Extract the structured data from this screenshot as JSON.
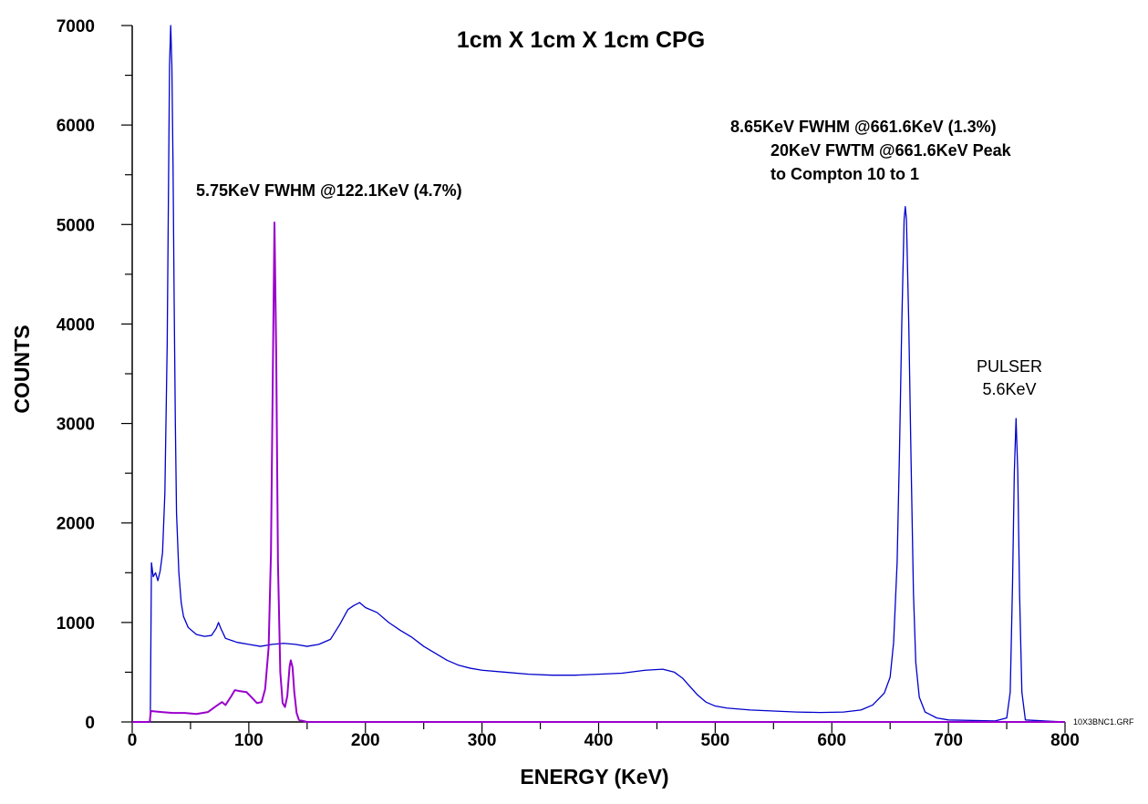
{
  "chart_data": {
    "type": "line",
    "title": "1cm X 1cm X 1cm CPG",
    "xlabel": "ENERGY (KeV)",
    "ylabel": "COUNTS",
    "xlim": [
      0,
      800
    ],
    "ylim": [
      0,
      7000
    ],
    "x_ticks": [
      "0",
      "100",
      "200",
      "300",
      "400",
      "500",
      "600",
      "700",
      "800"
    ],
    "y_ticks": [
      "0",
      "1000",
      "2000",
      "3000",
      "4000",
      "5000",
      "6000",
      "7000"
    ],
    "grid": false,
    "legend": "none",
    "series": [
      {
        "color": "#0000cc",
        "points": [
          [
            0,
            0
          ],
          [
            14,
            0
          ],
          [
            15.5,
            0
          ],
          [
            16.5,
            1600
          ],
          [
            18,
            1460
          ],
          [
            20,
            1500
          ],
          [
            22,
            1420
          ],
          [
            24,
            1520
          ],
          [
            26,
            1700
          ],
          [
            28,
            2300
          ],
          [
            30,
            3800
          ],
          [
            31,
            5200
          ],
          [
            32,
            6600
          ],
          [
            33,
            7000
          ],
          [
            34,
            6600
          ],
          [
            35,
            5600
          ],
          [
            36,
            4200
          ],
          [
            37,
            3000
          ],
          [
            38,
            2100
          ],
          [
            40,
            1500
          ],
          [
            42,
            1200
          ],
          [
            44,
            1060
          ],
          [
            48,
            950
          ],
          [
            55,
            880
          ],
          [
            62,
            860
          ],
          [
            68,
            870
          ],
          [
            72,
            940
          ],
          [
            74,
            1000
          ],
          [
            76,
            940
          ],
          [
            80,
            840
          ],
          [
            90,
            800
          ],
          [
            100,
            780
          ],
          [
            110,
            760
          ],
          [
            120,
            780
          ],
          [
            130,
            790
          ],
          [
            140,
            780
          ],
          [
            150,
            760
          ],
          [
            160,
            780
          ],
          [
            170,
            830
          ],
          [
            178,
            980
          ],
          [
            185,
            1130
          ],
          [
            190,
            1170
          ],
          [
            195,
            1200
          ],
          [
            200,
            1150
          ],
          [
            210,
            1100
          ],
          [
            220,
            1000
          ],
          [
            230,
            920
          ],
          [
            240,
            850
          ],
          [
            250,
            760
          ],
          [
            260,
            690
          ],
          [
            270,
            620
          ],
          [
            280,
            570
          ],
          [
            290,
            540
          ],
          [
            300,
            520
          ],
          [
            320,
            500
          ],
          [
            340,
            480
          ],
          [
            360,
            470
          ],
          [
            380,
            470
          ],
          [
            400,
            480
          ],
          [
            420,
            490
          ],
          [
            440,
            520
          ],
          [
            455,
            530
          ],
          [
            465,
            500
          ],
          [
            472,
            440
          ],
          [
            478,
            360
          ],
          [
            485,
            270
          ],
          [
            492,
            200
          ],
          [
            500,
            160
          ],
          [
            510,
            140
          ],
          [
            530,
            120
          ],
          [
            550,
            110
          ],
          [
            570,
            100
          ],
          [
            590,
            95
          ],
          [
            610,
            100
          ],
          [
            625,
            120
          ],
          [
            635,
            170
          ],
          [
            645,
            290
          ],
          [
            650,
            450
          ],
          [
            653,
            800
          ],
          [
            656,
            1600
          ],
          [
            658,
            2700
          ],
          [
            660,
            4000
          ],
          [
            662,
            5050
          ],
          [
            663,
            5180
          ],
          [
            664,
            5050
          ],
          [
            666,
            4000
          ],
          [
            668,
            2600
          ],
          [
            670,
            1300
          ],
          [
            672,
            600
          ],
          [
            675,
            250
          ],
          [
            680,
            100
          ],
          [
            690,
            40
          ],
          [
            700,
            20
          ],
          [
            740,
            10
          ],
          [
            750,
            40
          ],
          [
            753,
            300
          ],
          [
            755,
            1400
          ],
          [
            756.5,
            2500
          ],
          [
            758,
            3050
          ],
          [
            759.5,
            2500
          ],
          [
            761,
            1300
          ],
          [
            763,
            300
          ],
          [
            766,
            20
          ],
          [
            800,
            0
          ]
        ]
      },
      {
        "color": "#9900cc",
        "points": [
          [
            0,
            0
          ],
          [
            15,
            0
          ],
          [
            16,
            110
          ],
          [
            25,
            100
          ],
          [
            35,
            90
          ],
          [
            45,
            90
          ],
          [
            55,
            80
          ],
          [
            65,
            100
          ],
          [
            72,
            160
          ],
          [
            77,
            200
          ],
          [
            80,
            170
          ],
          [
            85,
            260
          ],
          [
            88,
            320
          ],
          [
            92,
            310
          ],
          [
            98,
            300
          ],
          [
            103,
            240
          ],
          [
            107,
            190
          ],
          [
            111,
            200
          ],
          [
            114,
            330
          ],
          [
            117,
            750
          ],
          [
            119,
            1700
          ],
          [
            120.5,
            3400
          ],
          [
            122,
            5020
          ],
          [
            123.5,
            3700
          ],
          [
            125,
            1600
          ],
          [
            127,
            500
          ],
          [
            129,
            190
          ],
          [
            131,
            150
          ],
          [
            133,
            260
          ],
          [
            135,
            560
          ],
          [
            136,
            620
          ],
          [
            137.5,
            550
          ],
          [
            139,
            300
          ],
          [
            141,
            90
          ],
          [
            143,
            20
          ],
          [
            150,
            0
          ],
          [
            800,
            0
          ]
        ]
      }
    ],
    "annotations": {
      "peak_122": "5.75KeV FWHM @122.1KeV (4.7%)",
      "peak_661_line1": "8.65KeV FWHM @661.6KeV  (1.3%)",
      "peak_661_line2": "20KeV FWTM @661.6KeV Peak",
      "peak_661_line3": "to Compton 10 to 1",
      "pulser_line1": "PULSER",
      "pulser_line2": "5.6KeV"
    },
    "file_label": "10X3BNC1.GRF"
  }
}
